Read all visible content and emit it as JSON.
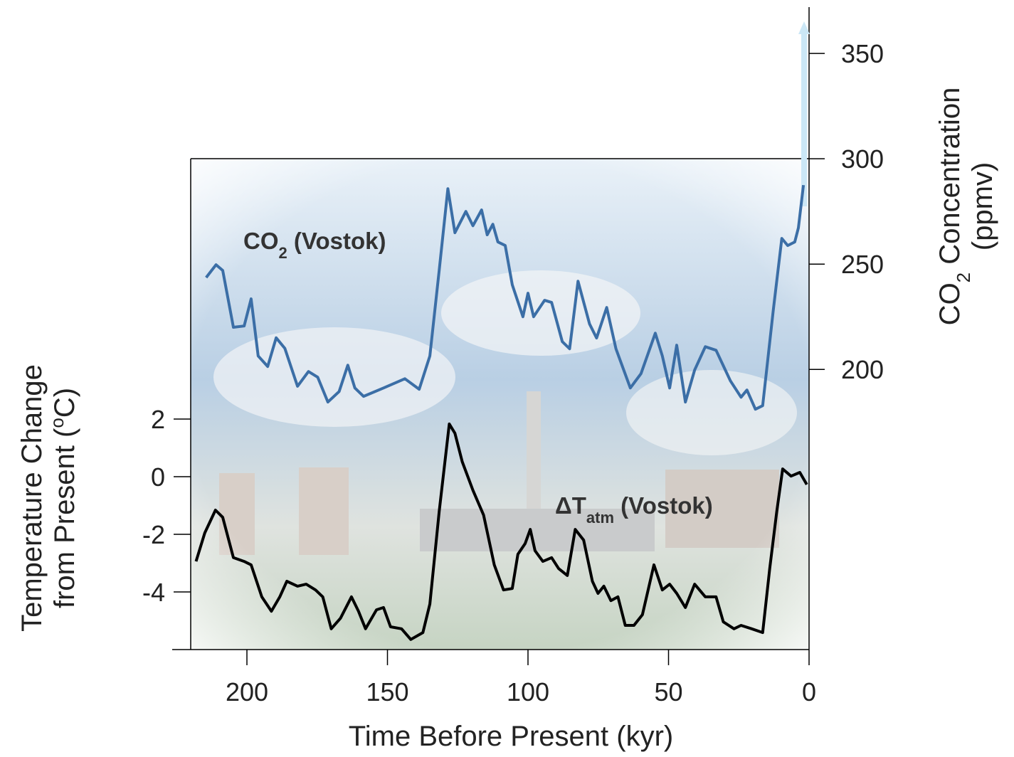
{
  "chart_data": {
    "type": "line",
    "xlabel": "Time Before Present (kyr)",
    "ylabel": [
      [
        {
          "text": "Temperature Change"
        }
      ],
      [
        {
          "text": "from Present ("
        },
        {
          "text": "o",
          "script": "super"
        },
        {
          "text": "C)"
        }
      ]
    ],
    "y2label": [
      [
        {
          "text": "CO"
        },
        {
          "text": "2",
          "script": "sub"
        },
        {
          "text": " Concentration"
        }
      ],
      [
        {
          "text": "(ppmv)"
        }
      ]
    ],
    "xlim": [
      220,
      0
    ],
    "xticks": [
      200,
      150,
      100,
      50,
      0
    ],
    "ylim": [
      -6,
      16.3
    ],
    "yticks": [
      2,
      0,
      -2,
      -4
    ],
    "y2lim": [
      67,
      372
    ],
    "y2ticks": [
      350,
      300,
      250,
      200
    ],
    "series": [
      {
        "label": [
          {
            "text": "CO"
          },
          {
            "text": "2",
            "script": "sub"
          },
          {
            "text": " (Vostok)"
          }
        ],
        "color": "#3b6ea6",
        "axis": "y2",
        "x": [
          214.5,
          211,
          208.6,
          204.8,
          201,
          198.5,
          196,
          192.6,
          189.6,
          186.5,
          182,
          178.1,
          174.8,
          171.2,
          167.2,
          164.1,
          161.6,
          158.5,
          151.4,
          143.8,
          138.7,
          134.9,
          131.6,
          128.5,
          126,
          122.1,
          119.6,
          116.5,
          114.5,
          112.5,
          110.7,
          108.1,
          105.6,
          101.8,
          100,
          98,
          94.1,
          91.6,
          87.8,
          85.2,
          82.2,
          78.1,
          75.6,
          72,
          68.7,
          63.6,
          59.8,
          54.7,
          52.2,
          49.6,
          47.1,
          44,
          40.7,
          36.9,
          33.1,
          28,
          24.2,
          22.1,
          19.1,
          16.5,
          12.7,
          9.7,
          7.6,
          5.1,
          3.8,
          2
        ],
        "values": [
          243.6,
          249.7,
          247,
          220,
          220.6,
          233.5,
          206.4,
          201.4,
          215,
          210,
          192,
          199,
          196.3,
          184.5,
          189.5,
          202,
          191.2,
          187.2,
          191.2,
          195.6,
          190.6,
          206.4,
          247,
          285.8,
          264.9,
          275,
          268.2,
          275.7,
          263.9,
          268.9,
          260.5,
          258.8,
          240.2,
          225,
          236.2,
          225,
          232.8,
          231.8,
          213.2,
          209.8,
          241.9,
          221.6,
          214.9,
          229.4,
          209.8,
          191.2,
          198,
          217.2,
          206.4,
          191.2,
          211.5,
          184.5,
          199.7,
          210.8,
          209.1,
          194.6,
          186.8,
          190.2,
          181.1,
          182.8,
          228.4,
          262.2,
          258.8,
          260.5,
          267.2,
          287.5
        ]
      },
      {
        "label": [
          {
            "text": "ΔT"
          },
          {
            "text": "atm",
            "script": "sub"
          },
          {
            "text": " (Vostok)"
          }
        ],
        "color": "#000000",
        "axis": "y",
        "x": [
          218.1,
          215,
          211.2,
          208.6,
          204.8,
          201,
          198.5,
          194.7,
          191.3,
          188.3,
          185.8,
          182,
          178.9,
          175.6,
          173,
          170,
          166.7,
          162.8,
          160.3,
          157.8,
          153.9,
          151.4,
          148.9,
          145,
          141.7,
          137.4,
          134.9,
          131.6,
          128,
          126,
          123.4,
          119.6,
          115.8,
          112,
          108.7,
          105.6,
          103.6,
          101,
          99.2,
          97.5,
          94.7,
          91.6,
          89.1,
          86,
          83.2,
          80.2,
          77.1,
          75.1,
          73,
          70.5,
          68,
          65.4,
          62.3,
          59.3,
          55.2,
          52.2,
          49.6,
          47.1,
          44,
          40.7,
          36.9,
          33.1,
          30.5,
          26.7,
          24.2,
          20.4,
          16.5,
          14,
          11.5,
          9.4,
          6.4,
          3.3,
          0.8
        ],
        "values": [
          -2.94,
          -1.95,
          -1.16,
          -1.41,
          -2.81,
          -2.94,
          -3.06,
          -4.17,
          -4.67,
          -4.17,
          -3.63,
          -3.8,
          -3.73,
          -3.93,
          -4.17,
          -5.28,
          -4.91,
          -4.17,
          -4.67,
          -5.28,
          -4.62,
          -4.54,
          -5.21,
          -5.28,
          -5.65,
          -5.41,
          -4.42,
          -1.21,
          1.83,
          1.51,
          0.52,
          -0.47,
          -1.33,
          -3.06,
          -3.93,
          -3.88,
          -2.69,
          -2.32,
          -1.83,
          -2.57,
          -2.94,
          -2.81,
          -3.19,
          -3.43,
          -1.83,
          -2.2,
          -3.63,
          -4.05,
          -3.8,
          -4.3,
          -4.17,
          -5.16,
          -5.16,
          -4.79,
          -3.06,
          -3.93,
          -3.73,
          -4.05,
          -4.54,
          -3.73,
          -4.17,
          -4.17,
          -5.04,
          -5.28,
          -5.16,
          -5.28,
          -5.41,
          -3.19,
          -1.21,
          0.27,
          0.02,
          0.15,
          -0.27
        ]
      }
    ]
  }
}
